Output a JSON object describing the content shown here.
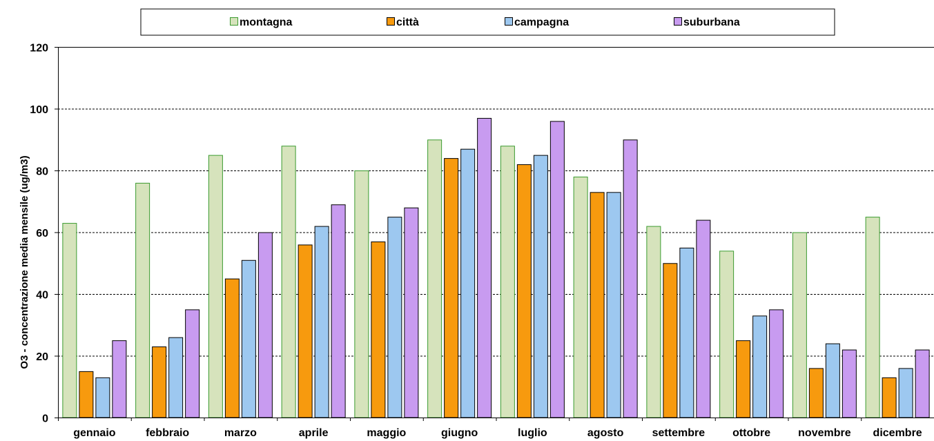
{
  "chart_data": {
    "type": "bar",
    "categories": [
      "gennaio",
      "febbraio",
      "marzo",
      "aprile",
      "maggio",
      "giugno",
      "luglio",
      "agosto",
      "settembre",
      "ottobre",
      "novembre",
      "dicembre"
    ],
    "series": [
      {
        "name": "montagna",
        "values": [
          63,
          76,
          85,
          88,
          80,
          90,
          88,
          78,
          62,
          54,
          60,
          65
        ],
        "fill": "#d6e3bc",
        "stroke": "#3a9a2e"
      },
      {
        "name": "città",
        "values": [
          15,
          23,
          45,
          56,
          57,
          84,
          82,
          73,
          50,
          25,
          16,
          13
        ],
        "fill": "#f79a0e",
        "stroke": "#000000"
      },
      {
        "name": "campagna",
        "values": [
          13,
          26,
          51,
          62,
          65,
          87,
          85,
          73,
          55,
          33,
          24,
          16
        ],
        "fill": "#9dc8f0",
        "stroke": "#000000"
      },
      {
        "name": "suburbana",
        "values": [
          25,
          35,
          60,
          69,
          68,
          97,
          96,
          90,
          64,
          35,
          22,
          22
        ],
        "fill": "#c89bf0",
        "stroke": "#000000"
      }
    ],
    "ylabel": "O3 - concentrazione media mensile (ug/m3)",
    "xlabel": "",
    "ylim": [
      0,
      120
    ],
    "yticks": [
      0,
      20,
      40,
      60,
      80,
      100,
      120
    ],
    "grid": "horizontal dashed at 20, 40, 60, 80, 100",
    "legend_position": "top"
  }
}
